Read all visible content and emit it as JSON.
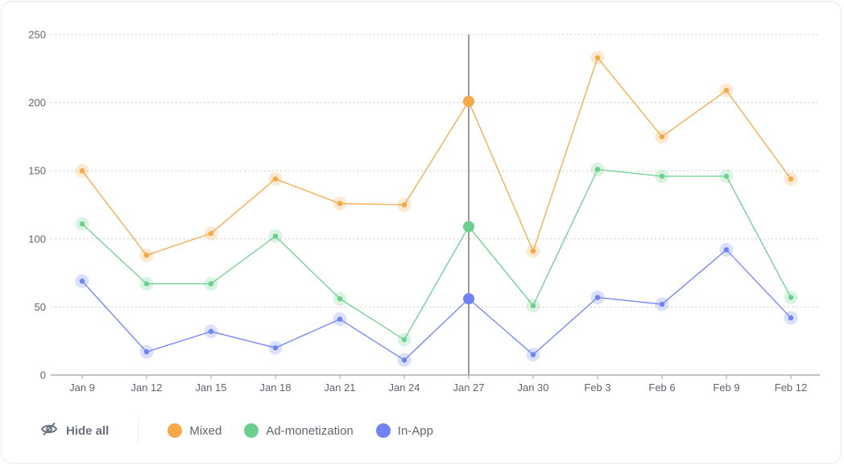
{
  "chart_data": {
    "type": "line",
    "title": "",
    "xlabel": "",
    "ylabel": "",
    "categories": [
      "Jan 9",
      "Jan 12",
      "Jan 15",
      "Jan 18",
      "Jan 21",
      "Jan 24",
      "Jan 27",
      "Jan 30",
      "Feb 3",
      "Feb 6",
      "Feb 9",
      "Feb 12"
    ],
    "ylim": [
      0,
      250
    ],
    "yticks": [
      0,
      50,
      100,
      150,
      200,
      250
    ],
    "grid": true,
    "highlighted_category": "Jan 27",
    "series": [
      {
        "name": "Mixed",
        "color": "#f5a848",
        "values": [
          150,
          88,
          104,
          144,
          126,
          125,
          201,
          91,
          233,
          175,
          209,
          144
        ]
      },
      {
        "name": "Ad-monetization",
        "color": "#6ccf8e",
        "values": [
          111,
          67,
          67,
          102,
          56,
          26,
          109,
          51,
          151,
          146,
          146,
          57
        ]
      },
      {
        "name": "In-App",
        "color": "#7183f2",
        "values": [
          69,
          17,
          32,
          20,
          41,
          11,
          56,
          15,
          57,
          52,
          92,
          42
        ]
      }
    ]
  },
  "legend": {
    "hide_all_label": "Hide all",
    "hide_icon": "eye-off-icon"
  }
}
